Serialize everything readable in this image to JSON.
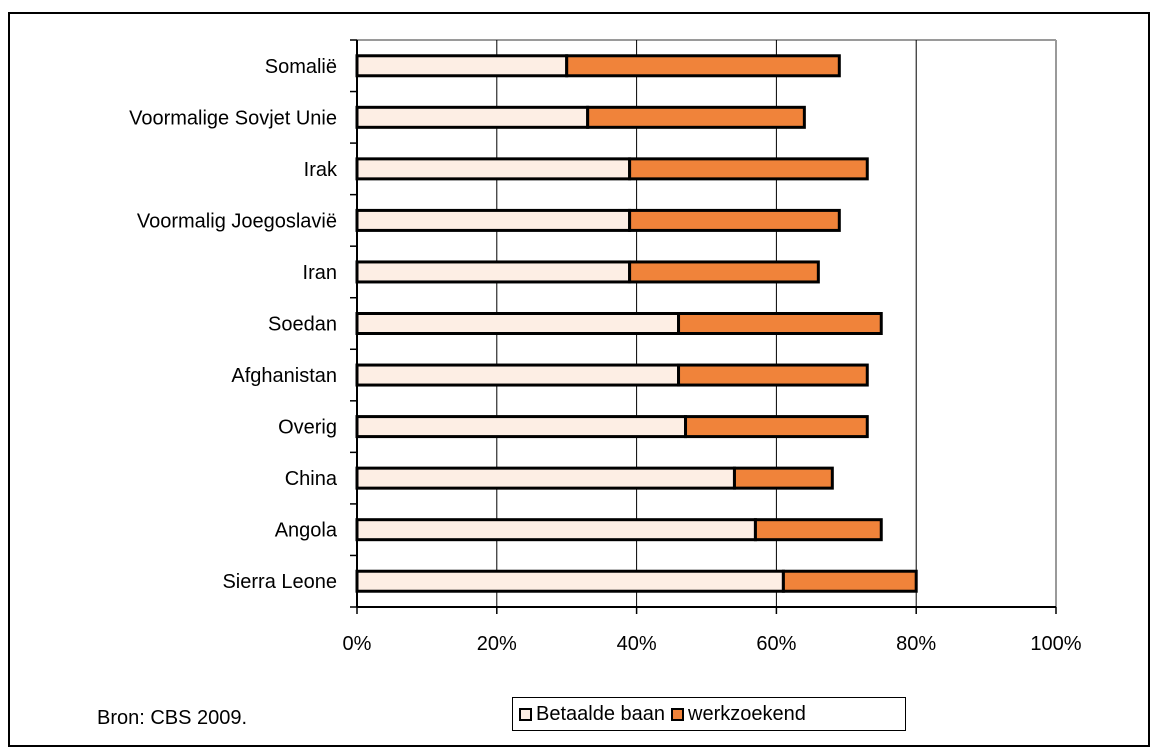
{
  "chart_data": {
    "type": "bar",
    "orientation": "horizontal",
    "stacked": true,
    "categories": [
      "Somalië",
      "Voormalige Sovjet Unie",
      "Irak",
      "Voormalig Joegoslavië",
      "Iran",
      "Soedan",
      "Afghanistan",
      "Overig",
      "China",
      "Angola",
      "Sierra Leone"
    ],
    "series": [
      {
        "name": "Betaalde baan",
        "color": "#fdeee4",
        "values": [
          30,
          33,
          39,
          39,
          39,
          46,
          46,
          47,
          54,
          57,
          61
        ]
      },
      {
        "name": "werkzoekend",
        "color": "#f0833a",
        "values": [
          39,
          31,
          34,
          30,
          27,
          29,
          27,
          26,
          14,
          18,
          19
        ]
      }
    ],
    "xlim": [
      0,
      100
    ],
    "x_ticks": [
      "0%",
      "20%",
      "40%",
      "60%",
      "80%",
      "100%"
    ],
    "x_tick_values": [
      0,
      20,
      40,
      60,
      80,
      100
    ],
    "grid": "vertical",
    "legend": "bottom-center",
    "title": "",
    "xlabel": "",
    "ylabel": ""
  },
  "source_note": "Bron: CBS 2009."
}
